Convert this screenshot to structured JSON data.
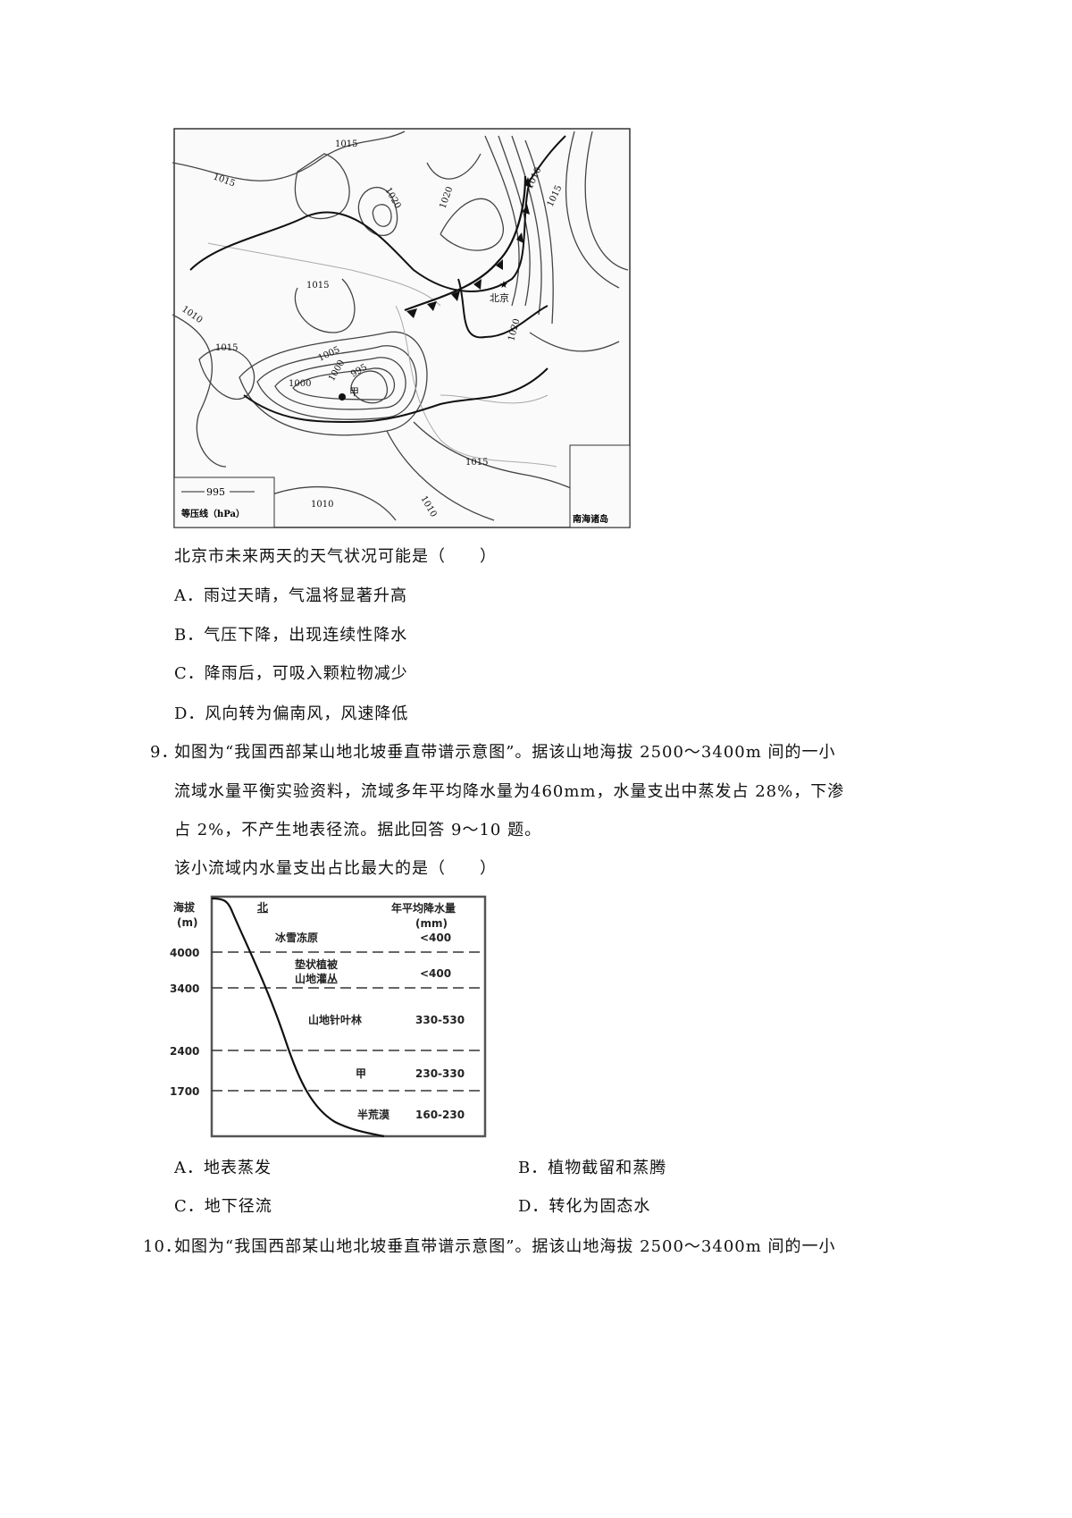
{
  "map": {
    "isobar_labels": [
      "1015",
      "1015",
      "1020",
      "1020",
      "1010",
      "1015",
      "1015",
      "1010",
      "1015",
      "1005",
      "1000",
      "1000",
      "995",
      "1020",
      "1015",
      "1010",
      "1010"
    ],
    "place_beijing": "北京",
    "place_jia": "甲",
    "legend_value": "995",
    "legend_label": "等压线（hPa）",
    "inset_label": "南海诸岛"
  },
  "q8": {
    "stem": "北京市未来两天的天气状况可能是（　　）",
    "options": [
      "A．雨过天晴，气温将显著升高",
      "B．气压下降，出现连续性降水",
      "C．降雨后，可吸入颗粒物减少",
      "D．风向转为偏南风，风速降低"
    ]
  },
  "q9": {
    "number": "9．",
    "lines": [
      "如图为“我国西部某山地北坡垂直带谱示意图”。据该山地海拔 2500～3400m 间的一小",
      "流域水量平衡实验资料，流域多年平均降水量为460mm，水量支出中蒸发占 28%，下渗",
      "占 2%，不产生地表径流。据此回答 9～10 题。"
    ],
    "stem": "该小流域内水量支出占比最大的是（　　）",
    "options": [
      "A．地表蒸发",
      "B．植物截留和蒸腾",
      "C．地下径流",
      "D．转化为固态水"
    ]
  },
  "diagram": {
    "y_label_1": "海拔",
    "y_label_2": "(m)",
    "north": "北",
    "col_header_1": "年平均降水量",
    "col_header_2": "(mm)",
    "ticks": [
      "4000",
      "3400",
      "2400",
      "1700"
    ],
    "zones": [
      {
        "name": "冰雪冻原",
        "precip": "<400"
      },
      {
        "name": "垫状植被",
        "name2": "山地灌丛",
        "precip": "<400"
      },
      {
        "name": "山地针叶林",
        "precip": "330-530"
      },
      {
        "name": "甲",
        "precip": "230-330"
      },
      {
        "name": "半荒漠",
        "precip": "160-230"
      }
    ]
  },
  "q10": {
    "number": "10．",
    "line": "如图为“我国西部某山地北坡垂直带谱示意图”。据该山地海拔 2500～3400m 间的一小"
  }
}
